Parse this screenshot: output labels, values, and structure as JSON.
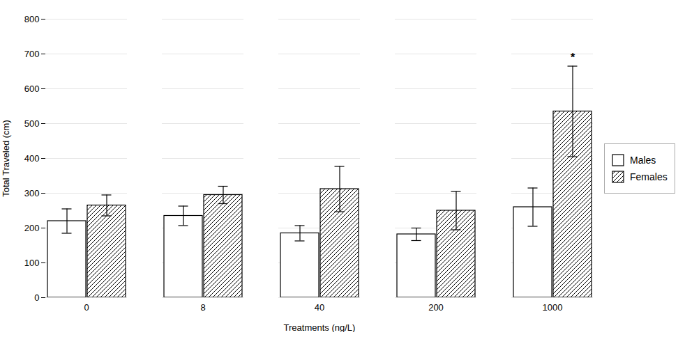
{
  "chart_data": {
    "type": "bar",
    "xlabel": "Treatments (ng/L)",
    "ylabel": "Total Traveled (cm)",
    "categories": [
      "0",
      "8",
      "40",
      "200",
      "1000"
    ],
    "series": [
      {
        "name": "Males",
        "color": "#ffffff",
        "values": [
          220,
          235,
          185,
          182,
          260
        ],
        "errors": [
          35,
          28,
          22,
          18,
          55
        ]
      },
      {
        "name": "Females",
        "color": "#ffffff",
        "values": [
          265,
          295,
          312,
          250,
          535
        ],
        "errors": [
          30,
          25,
          65,
          55,
          130
        ]
      }
    ],
    "annotations": [
      {
        "text": "*",
        "category": "1000",
        "series": "Females",
        "y": 680
      }
    ],
    "ylim": [
      0,
      800
    ],
    "yticks": [
      0,
      100,
      200,
      300,
      400,
      500,
      600,
      700,
      800
    ],
    "grid": true,
    "legend": "right"
  }
}
